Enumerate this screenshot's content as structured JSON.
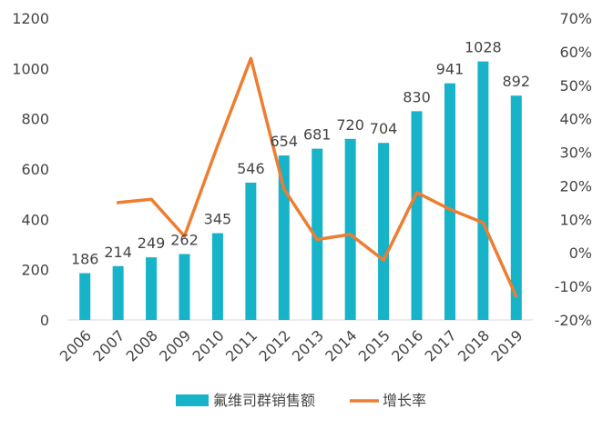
{
  "chart_data": {
    "type": "bar",
    "categories": [
      "2006",
      "2007",
      "2008",
      "2009",
      "2010",
      "2011",
      "2012",
      "2013",
      "2014",
      "2015",
      "2016",
      "2017",
      "2018",
      "2019"
    ],
    "series": [
      {
        "name": "氟维司群销售额",
        "type": "bar",
        "axis": "left",
        "color": "#17b3c9",
        "values": [
          186,
          214,
          249,
          262,
          345,
          546,
          654,
          681,
          720,
          704,
          830,
          941,
          1028,
          892
        ]
      },
      {
        "name": "增长率",
        "type": "line",
        "axis": "right",
        "color": "#ed7d31",
        "values": [
          null,
          0.15,
          0.16,
          0.05,
          0.32,
          0.58,
          0.19,
          0.04,
          0.055,
          -0.022,
          0.18,
          0.13,
          0.09,
          -0.13
        ]
      }
    ],
    "ylim_left": [
      0,
      1200
    ],
    "yticks_left": [
      "0",
      "200",
      "400",
      "600",
      "800",
      "1000",
      "1200"
    ],
    "ylim_right": [
      -0.2,
      0.7
    ],
    "yticks_right": [
      "-20%",
      "-10%",
      "0%",
      "10%",
      "20%",
      "30%",
      "40%",
      "50%",
      "60%",
      "70%"
    ],
    "grid": false,
    "legend_position": "bottom"
  }
}
